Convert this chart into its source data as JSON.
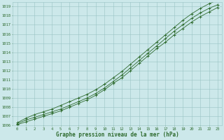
{
  "x": [
    0,
    1,
    2,
    3,
    4,
    5,
    6,
    7,
    8,
    9,
    10,
    11,
    12,
    13,
    14,
    15,
    16,
    17,
    18,
    19,
    20,
    21,
    22,
    23
  ],
  "y_mean": [
    1006.2,
    1006.6,
    1006.9,
    1007.2,
    1007.5,
    1007.8,
    1008.2,
    1008.6,
    1009.0,
    1009.5,
    1010.1,
    1010.8,
    1011.5,
    1012.3,
    1013.1,
    1013.9,
    1014.7,
    1015.5,
    1016.3,
    1017.0,
    1017.7,
    1018.3,
    1018.8,
    1019.2
  ],
  "y_min": [
    1006.1,
    1006.4,
    1006.7,
    1007.0,
    1007.3,
    1007.6,
    1008.0,
    1008.4,
    1008.8,
    1009.3,
    1009.9,
    1010.6,
    1011.2,
    1012.0,
    1012.8,
    1013.6,
    1014.4,
    1015.1,
    1015.9,
    1016.6,
    1017.3,
    1017.9,
    1018.4,
    1018.9
  ],
  "y_max": [
    1006.3,
    1006.8,
    1007.2,
    1007.5,
    1007.8,
    1008.2,
    1008.6,
    1009.0,
    1009.4,
    1009.9,
    1010.5,
    1011.2,
    1011.9,
    1012.7,
    1013.5,
    1014.3,
    1015.1,
    1015.9,
    1016.7,
    1017.5,
    1018.2,
    1018.8,
    1019.3,
    1019.7
  ],
  "ylim": [
    1006.0,
    1019.5
  ],
  "xlim_min": -0.5,
  "xlim_max": 23.5,
  "yticks": [
    1006,
    1007,
    1008,
    1009,
    1010,
    1011,
    1012,
    1013,
    1014,
    1015,
    1016,
    1017,
    1018,
    1019
  ],
  "xticks": [
    0,
    1,
    2,
    3,
    4,
    5,
    6,
    7,
    8,
    9,
    10,
    11,
    12,
    13,
    14,
    15,
    16,
    17,
    18,
    19,
    20,
    21,
    22,
    23
  ],
  "xlabel": "Graphe pression niveau de la mer (hPa)",
  "line_color": "#2d6a2d",
  "bg_color": "#cce8ea",
  "grid_color": "#99c4c4",
  "text_color": "#2d6a2d",
  "marker": "+"
}
